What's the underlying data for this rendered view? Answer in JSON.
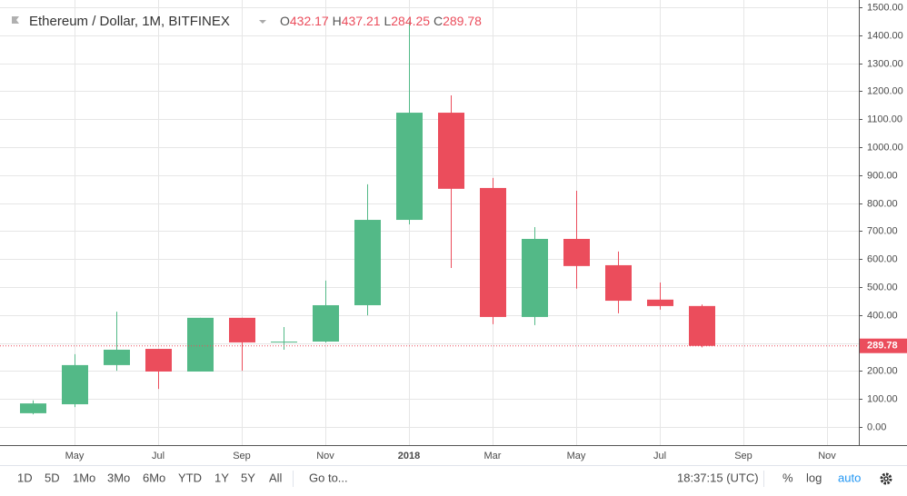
{
  "chart_data": {
    "type": "candlestick",
    "title": "Ethereum / Dollar, 1M, BITFINEX",
    "ohlc_prefixes": [
      "O",
      "H",
      "L",
      "C"
    ],
    "categories": [
      null,
      "May",
      null,
      "Jul",
      null,
      "Sep",
      null,
      "Nov",
      null,
      "2018",
      null,
      "Mar",
      null,
      "May",
      null,
      "Jul",
      null,
      "Sep",
      null,
      "Nov"
    ],
    "open": [
      49,
      81,
      221,
      279,
      198,
      390,
      302,
      305,
      435,
      740,
      1123,
      854,
      393,
      672,
      578,
      455,
      432.17,
      null,
      null,
      null
    ],
    "high": [
      95,
      260,
      412,
      279,
      390,
      390,
      357,
      523,
      867,
      1450,
      1185,
      890,
      714,
      844,
      627,
      516,
      437.21,
      null,
      null,
      null
    ],
    "low": [
      45,
      71,
      201,
      136,
      198,
      201,
      276,
      302,
      399,
      724,
      568,
      367,
      364,
      494,
      406,
      419,
      284.25,
      null,
      null,
      null
    ],
    "close": [
      84,
      221,
      276,
      198,
      390,
      302,
      305,
      435,
      740,
      1123,
      851,
      393,
      672,
      575,
      451,
      432,
      289.78,
      null,
      null,
      null
    ],
    "up_color": "#53b987",
    "down_color": "#eb4d5c",
    "ylim": [
      -65,
      1516
    ],
    "yticks": [
      {
        "value": 0,
        "label": "0.00"
      },
      {
        "value": 100,
        "label": "100.00"
      },
      {
        "value": 200,
        "label": "200.00"
      },
      {
        "value": 300,
        "label": "300.00"
      },
      {
        "value": 400,
        "label": "400.00"
      },
      {
        "value": 500,
        "label": "500.00"
      },
      {
        "value": 600,
        "label": "600.00"
      },
      {
        "value": 700,
        "label": "700.00"
      },
      {
        "value": 800,
        "label": "800.00"
      },
      {
        "value": 900,
        "label": "900.00"
      },
      {
        "value": 1000,
        "label": "1000.00"
      },
      {
        "value": 1100,
        "label": "1100.00"
      },
      {
        "value": 1200,
        "label": "1200.00"
      },
      {
        "value": 1300,
        "label": "1300.00"
      },
      {
        "value": 1400,
        "label": "1400.00"
      },
      {
        "value": 1500,
        "label": "1500.00"
      }
    ],
    "grid": true
  },
  "toolbar": {
    "ranges": [
      "1D",
      "5D",
      "1Mo",
      "3Mo",
      "6Mo",
      "YTD",
      "1Y",
      "5Y",
      "All"
    ],
    "goto": "Go to...",
    "time": "18:37:15 (UTC)",
    "percent": "%",
    "log": "log",
    "auto": "auto"
  }
}
